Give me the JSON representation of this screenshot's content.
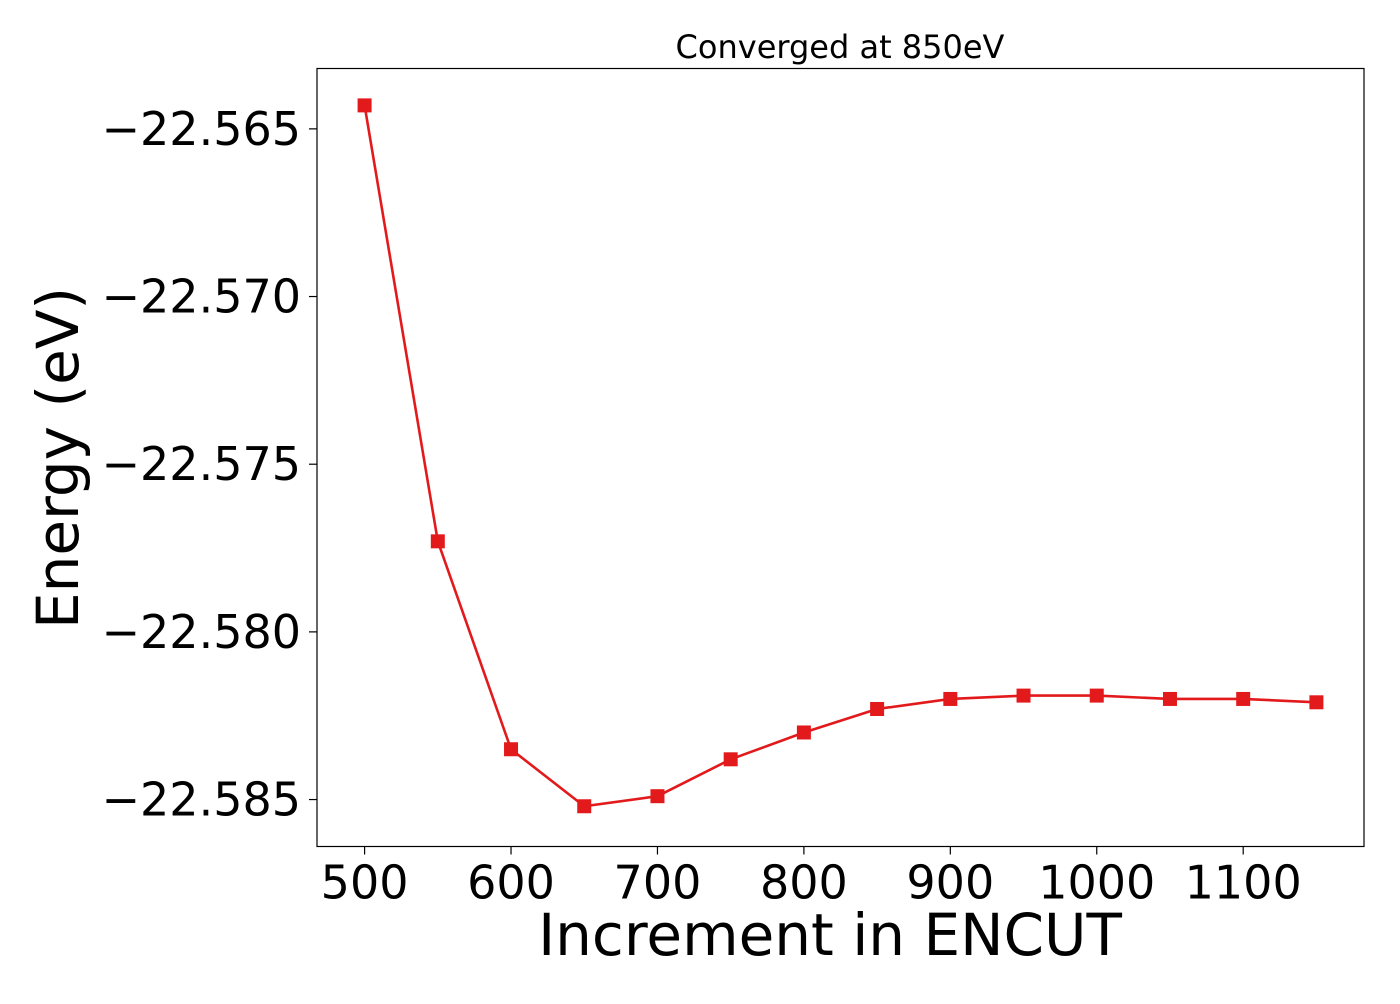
{
  "chart_data": {
    "type": "line",
    "title": "Converged at 850eV",
    "xlabel": "Increment in ENCUT",
    "ylabel": "Energy (eV)",
    "x": [
      500,
      550,
      600,
      650,
      700,
      750,
      800,
      850,
      900,
      950,
      1000,
      1050,
      1100,
      1150
    ],
    "series": [
      {
        "values": [
          -22.5643,
          -22.5773,
          -22.5835,
          -22.5852,
          -22.5849,
          -22.5838,
          -22.583,
          -22.5823,
          -22.582,
          -22.5819,
          -22.5819,
          -22.582,
          -22.582,
          -22.5821
        ],
        "color": "#e31a1c",
        "marker": "square"
      }
    ],
    "xlim": [
      467.5,
      1182.5
    ],
    "ylim": [
      -22.5864,
      -22.5632
    ],
    "xticks": [
      500,
      600,
      700,
      800,
      900,
      1000,
      1100
    ],
    "xtick_labels": [
      "500",
      "600",
      "700",
      "800",
      "900",
      "1000",
      "1100"
    ],
    "yticks": [
      -22.565,
      -22.57,
      -22.575,
      -22.58,
      -22.585
    ],
    "ytick_labels": [
      "−22.565",
      "−22.570",
      "−22.575",
      "−22.580",
      "−22.585"
    ],
    "grid": false,
    "legend": "none"
  }
}
